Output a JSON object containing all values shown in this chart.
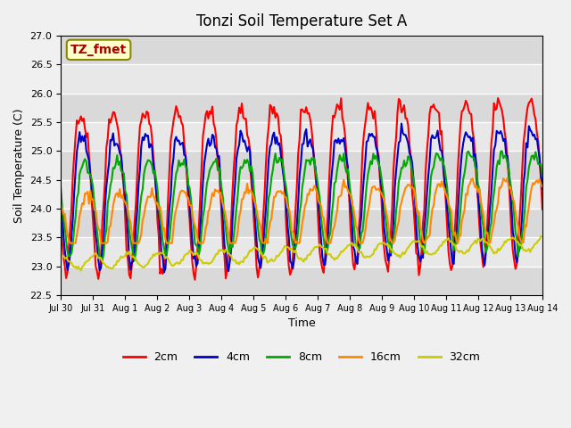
{
  "title": "Tonzi Soil Temperature Set A",
  "xlabel": "Time",
  "ylabel": "Soil Temperature (C)",
  "ylim": [
    22.5,
    27.0
  ],
  "yticks": [
    22.5,
    23.0,
    23.5,
    24.0,
    24.5,
    25.0,
    25.5,
    26.0,
    26.5,
    27.0
  ],
  "xtick_labels": [
    "Jul 30",
    "Jul 31",
    "Aug 1",
    "Aug 2",
    "Aug 3",
    "Aug 4",
    "Aug 5",
    "Aug 6",
    "Aug 7",
    "Aug 8",
    "Aug 9",
    "Aug 10",
    "Aug 11",
    "Aug 12",
    "Aug 13",
    "Aug 14"
  ],
  "annotation_text": "TZ_fmet",
  "annotation_color": "#aa0000",
  "annotation_bg": "#ffffcc",
  "legend_labels": [
    "2cm",
    "4cm",
    "8cm",
    "16cm",
    "32cm"
  ],
  "line_colors": [
    "#ff0000",
    "#0000cc",
    "#00aa00",
    "#ff8800",
    "#cccc00"
  ],
  "line_widths": [
    1.5,
    1.5,
    1.5,
    1.5,
    1.5
  ],
  "plot_bg": "#e8e8e8",
  "fig_bg": "#f0f0f0"
}
